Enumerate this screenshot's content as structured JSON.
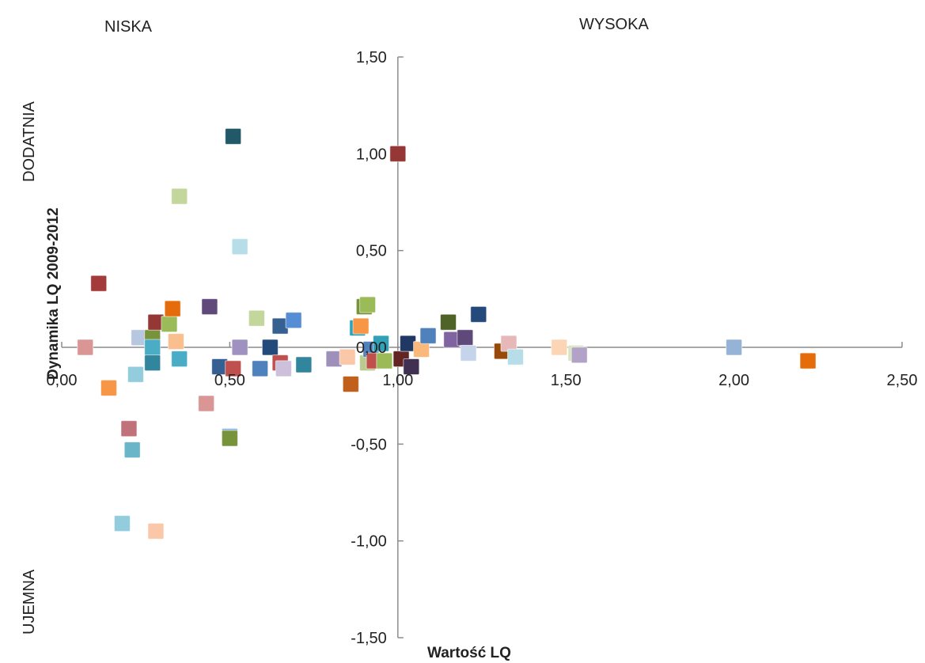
{
  "chart_data": {
    "type": "scatter",
    "title": "",
    "xlabel": "Wartość LQ",
    "ylabel": "Dynamika LQ 2009-2012",
    "xlim": [
      0,
      2.5
    ],
    "ylim": [
      -1.5,
      1.5
    ],
    "x_ticks": [
      "0,00",
      "0,50",
      "1,00",
      "1,50",
      "2,00",
      "2,50"
    ],
    "y_ticks": [
      "1,50",
      "1,00",
      "0,50",
      "0,00",
      "-0,50",
      "-1,00",
      "-1,50"
    ],
    "quadrant_labels": {
      "top_left": "NISKA",
      "top_right": "WYSOKA",
      "left_upper": "DODATNIA",
      "left_lower": "UJEMNA"
    },
    "x_axis_crosses_at": 0,
    "y_axis_crosses_at": 1.0,
    "grid": false,
    "marker": "square",
    "points": [
      {
        "x": 0.07,
        "y": 0.0,
        "color": "#d99694"
      },
      {
        "x": 0.11,
        "y": 0.33,
        "color": "#a33b3b"
      },
      {
        "x": 0.14,
        "y": -0.21,
        "color": "#f79646"
      },
      {
        "x": 0.18,
        "y": -0.91,
        "color": "#93cddd"
      },
      {
        "x": 0.2,
        "y": -0.42,
        "color": "#c0717a"
      },
      {
        "x": 0.21,
        "y": -0.53,
        "color": "#6bb5c8"
      },
      {
        "x": 0.22,
        "y": -0.14,
        "color": "#93cddd"
      },
      {
        "x": 0.23,
        "y": 0.05,
        "color": "#b8c7e0"
      },
      {
        "x": 0.28,
        "y": -0.95,
        "color": "#fac8a8"
      },
      {
        "x": 0.27,
        "y": 0.05,
        "color": "#77933c"
      },
      {
        "x": 0.27,
        "y": 0.0,
        "color": "#4bacc6"
      },
      {
        "x": 0.27,
        "y": -0.08,
        "color": "#31859c"
      },
      {
        "x": 0.28,
        "y": 0.13,
        "color": "#953735"
      },
      {
        "x": 0.32,
        "y": 0.12,
        "color": "#9bbb59"
      },
      {
        "x": 0.33,
        "y": 0.2,
        "color": "#e46c0a"
      },
      {
        "x": 0.34,
        "y": 0.03,
        "color": "#fabf8f"
      },
      {
        "x": 0.35,
        "y": 0.78,
        "color": "#c3d69b"
      },
      {
        "x": 0.35,
        "y": -0.06,
        "color": "#4bacc6"
      },
      {
        "x": 0.43,
        "y": -0.29,
        "color": "#d99694"
      },
      {
        "x": 0.44,
        "y": 0.21,
        "color": "#604a7b"
      },
      {
        "x": 0.47,
        "y": -0.1,
        "color": "#376092"
      },
      {
        "x": 0.5,
        "y": -0.46,
        "color": "#8eb4e3"
      },
      {
        "x": 0.5,
        "y": -0.47,
        "color": "#77933c"
      },
      {
        "x": 0.51,
        "y": -0.11,
        "color": "#c0504d"
      },
      {
        "x": 0.51,
        "y": 1.09,
        "color": "#215968"
      },
      {
        "x": 0.53,
        "y": 0.52,
        "color": "#b7dde8"
      },
      {
        "x": 0.53,
        "y": 0.0,
        "color": "#a092c0"
      },
      {
        "x": 0.58,
        "y": 0.15,
        "color": "#c3d69b"
      },
      {
        "x": 0.59,
        "y": -0.11,
        "color": "#4f81bd"
      },
      {
        "x": 0.62,
        "y": 0.0,
        "color": "#244a7b"
      },
      {
        "x": 0.65,
        "y": 0.11,
        "color": "#376092"
      },
      {
        "x": 0.65,
        "y": -0.08,
        "color": "#c0504d"
      },
      {
        "x": 0.66,
        "y": -0.11,
        "color": "#ccc0da"
      },
      {
        "x": 0.69,
        "y": 0.14,
        "color": "#558ed5"
      },
      {
        "x": 0.72,
        "y": -0.09,
        "color": "#31859c"
      },
      {
        "x": 0.81,
        "y": -0.06,
        "color": "#9f90b9"
      },
      {
        "x": 0.85,
        "y": -0.05,
        "color": "#fac8a8"
      },
      {
        "x": 0.86,
        "y": -0.19,
        "color": "#c0601a"
      },
      {
        "x": 0.88,
        "y": 0.1,
        "color": "#31a1b8"
      },
      {
        "x": 0.89,
        "y": 0.11,
        "color": "#f79646"
      },
      {
        "x": 0.9,
        "y": 0.21,
        "color": "#77933c"
      },
      {
        "x": 0.91,
        "y": 0.22,
        "color": "#9bbb59"
      },
      {
        "x": 0.91,
        "y": -0.08,
        "color": "#b9cc8e"
      },
      {
        "x": 0.92,
        "y": -0.01,
        "color": "#4f81bd"
      },
      {
        "x": 0.93,
        "y": -0.07,
        "color": "#c0504d"
      },
      {
        "x": 0.95,
        "y": 0.02,
        "color": "#31a1b8"
      },
      {
        "x": 0.96,
        "y": -0.07,
        "color": "#9bbb59"
      },
      {
        "x": 1.0,
        "y": 1.0,
        "color": "#953735"
      },
      {
        "x": 1.01,
        "y": -0.06,
        "color": "#632523"
      },
      {
        "x": 1.03,
        "y": 0.02,
        "color": "#1f3864"
      },
      {
        "x": 1.04,
        "y": -0.1,
        "color": "#403152"
      },
      {
        "x": 1.07,
        "y": -0.01,
        "color": "#fab87a"
      },
      {
        "x": 1.09,
        "y": 0.06,
        "color": "#4f81bd"
      },
      {
        "x": 1.15,
        "y": 0.13,
        "color": "#4f6228"
      },
      {
        "x": 1.16,
        "y": 0.04,
        "color": "#8064a2"
      },
      {
        "x": 1.2,
        "y": 0.05,
        "color": "#5f497a"
      },
      {
        "x": 1.21,
        "y": -0.03,
        "color": "#c5d4ea"
      },
      {
        "x": 1.24,
        "y": 0.17,
        "color": "#244a7b"
      },
      {
        "x": 1.31,
        "y": -0.02,
        "color": "#984807"
      },
      {
        "x": 1.33,
        "y": 0.02,
        "color": "#e6b9b8"
      },
      {
        "x": 1.35,
        "y": -0.05,
        "color": "#b7dde8"
      },
      {
        "x": 1.48,
        "y": 0.0,
        "color": "#fbd5b5"
      },
      {
        "x": 1.53,
        "y": -0.03,
        "color": "#d7e4bd"
      },
      {
        "x": 1.54,
        "y": -0.04,
        "color": "#b3a2c7"
      },
      {
        "x": 2.0,
        "y": 0.0,
        "color": "#95b3d7"
      },
      {
        "x": 2.22,
        "y": -0.07,
        "color": "#e46c0a"
      }
    ]
  },
  "colors": {
    "axis": "#8c8c8c",
    "text": "#222222"
  }
}
